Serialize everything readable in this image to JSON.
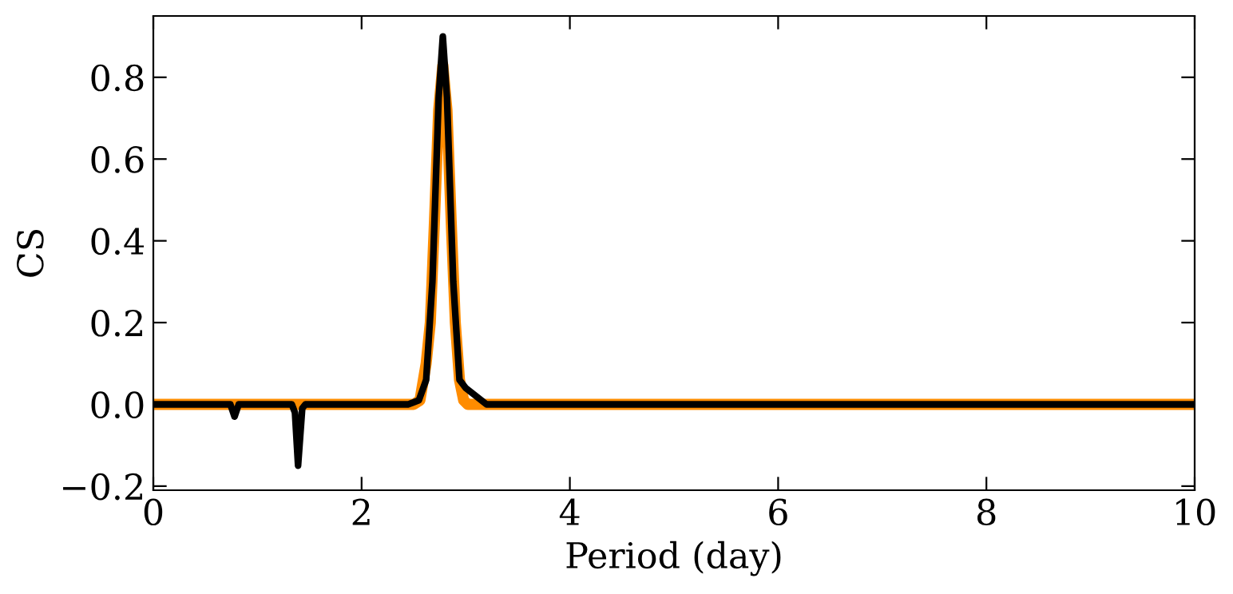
{
  "chart_data": {
    "type": "line",
    "xlabel": "Period (day)",
    "ylabel": "CS",
    "xlim": [
      0,
      10
    ],
    "ylim": [
      -0.21,
      0.95
    ],
    "xticks": [
      0,
      2,
      4,
      6,
      8,
      10
    ],
    "yticks": [
      {
        "value": -0.2,
        "label": "−0.2"
      },
      {
        "value": 0,
        "label": "0.0"
      },
      {
        "value": 0.2,
        "label": "0.2"
      },
      {
        "value": 0.4,
        "label": "0.4"
      },
      {
        "value": 0.6,
        "label": "0.6"
      },
      {
        "value": 0.8,
        "label": "0.8"
      }
    ],
    "grid": false,
    "legend": false,
    "marker": "none",
    "line_style": "solid",
    "series": [
      {
        "color": "#000000",
        "x": [
          0,
          0.74,
          0.78,
          0.82,
          1.33,
          1.36,
          1.39,
          1.43,
          1.46,
          2.45,
          2.55,
          2.62,
          2.68,
          2.74,
          2.78,
          2.82,
          2.88,
          2.94,
          3.0,
          3.1,
          3.2,
          10
        ],
        "values": [
          0,
          0,
          -0.03,
          0,
          0,
          -0.02,
          -0.15,
          -0.01,
          0,
          0,
          0.01,
          0.06,
          0.3,
          0.75,
          0.9,
          0.75,
          0.3,
          0.06,
          0.04,
          0.02,
          0,
          0
        ]
      },
      {
        "color": "#ff8c00",
        "x": [
          0,
          2.5,
          2.56,
          2.62,
          2.66,
          2.7,
          2.74,
          2.78,
          2.82,
          2.86,
          2.9,
          2.94,
          2.98,
          3.02,
          10
        ],
        "values": [
          0,
          0,
          0.01,
          0.1,
          0.2,
          0.45,
          0.72,
          0.83,
          0.72,
          0.45,
          0.2,
          0.06,
          0.01,
          0,
          0
        ]
      }
    ]
  }
}
